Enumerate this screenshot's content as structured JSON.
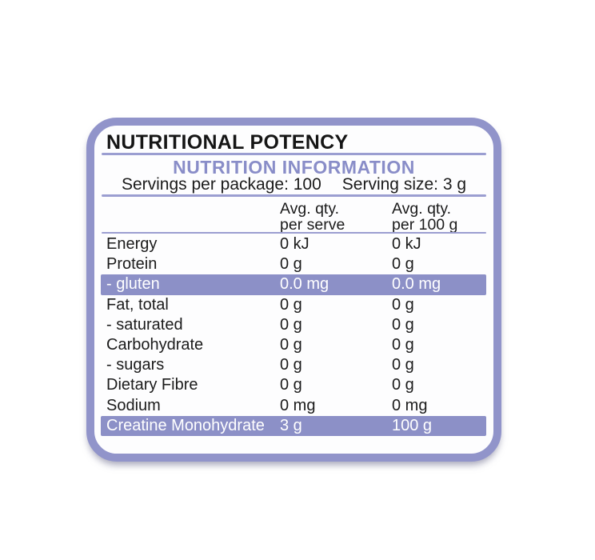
{
  "panel": {
    "title": "NUTRITIONAL POTENCY",
    "table_title": "NUTRITION INFORMATION",
    "servings_per_package": "Servings per package: 100",
    "serving_size": "Serving size: 3 g",
    "columns": {
      "per_serve": {
        "line1": "Avg. qty.",
        "line2": "per serve"
      },
      "per_100g": {
        "line1": "Avg. qty.",
        "line2": "per 100 g"
      }
    },
    "rows": [
      {
        "label": "Energy",
        "per_serve": "0 kJ",
        "per_100g": "0 kJ",
        "highlight": false
      },
      {
        "label": "Protein",
        "per_serve": "0 g",
        "per_100g": "0 g",
        "highlight": false
      },
      {
        "label": "- gluten",
        "per_serve": "0.0 mg",
        "per_100g": "0.0 mg",
        "highlight": true
      },
      {
        "label": "Fat, total",
        "per_serve": "0 g",
        "per_100g": "0 g",
        "highlight": false
      },
      {
        "label": "- saturated",
        "per_serve": "0 g",
        "per_100g": "0 g",
        "highlight": false
      },
      {
        "label": "Carbohydrate",
        "per_serve": "0 g",
        "per_100g": "0 g",
        "highlight": false
      },
      {
        "label": "- sugars",
        "per_serve": "0 g",
        "per_100g": "0 g",
        "highlight": false
      },
      {
        "label": "Dietary Fibre",
        "per_serve": "0 g",
        "per_100g": "0 g",
        "highlight": false
      },
      {
        "label": "Sodium",
        "per_serve": "0 mg",
        "per_100g": "0 mg",
        "highlight": false
      },
      {
        "label": "Creatine Monohydrate",
        "per_serve": "3 g",
        "per_100g": "100 g",
        "highlight": true
      }
    ],
    "colors": {
      "border": "#9194CA",
      "band": "#8C90C7",
      "accent_text": "#898DC8",
      "divider": "#9B9ED1",
      "text": "#1B1B1B",
      "card_bg": "#FDFDFE"
    }
  }
}
